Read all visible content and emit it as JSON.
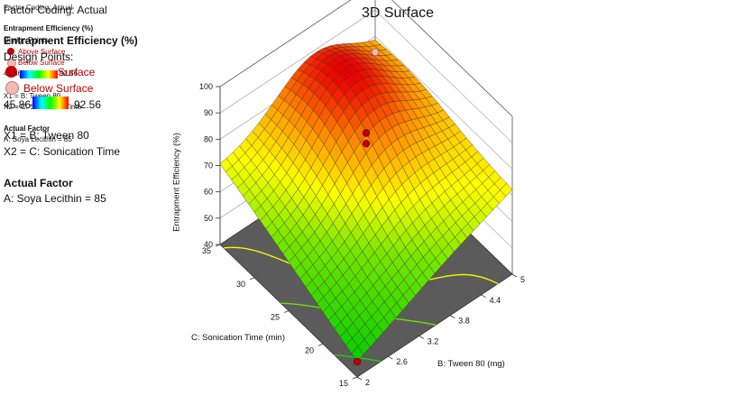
{
  "legend": {
    "factor_coding_ghost": "Factor Coding: Actual",
    "factor_coding": "Factor Coding: Actual",
    "response_ghost": "Entrapment Efficiency (%)",
    "response": "Entrapment Efficiency (%)",
    "design_points_ghost": "Design Points",
    "design_points": "Design Points:",
    "above_surface": "Above Surface",
    "below_surface": "Below Surface",
    "range_min": "45.86",
    "range_max": "92.56",
    "x1": "X1 = B: Tween 80",
    "x2": "X2 = C: Sonication Time",
    "actual_factor": "Actual Factor",
    "actual_factor_value": "A: Soya Lecithin = 85",
    "colors": {
      "above": "#c00000",
      "below": "#f4b8b8"
    }
  },
  "chart_data": {
    "type": "surface3d",
    "title": "3D Surface",
    "zlabel": "Entrapment Efficiency (%)",
    "xlabel": "B: Tween 80 (mg)",
    "ylabel": "C: Sonication Time (min)",
    "x_ticks": [
      "2",
      "2.6",
      "3.2",
      "3.8",
      "4.4",
      "5"
    ],
    "y_ticks": [
      "15",
      "20",
      "25",
      "30",
      "35"
    ],
    "z_ticks": [
      "40",
      "50",
      "60",
      "70",
      "80",
      "90",
      "100"
    ],
    "xlim": [
      2,
      5
    ],
    "ylim": [
      15,
      35
    ],
    "zlim": [
      40,
      100
    ],
    "corners": {
      "x2_y15": 45.86,
      "x2_y35": 70,
      "x5_y15": 72,
      "x5_y35": 75
    },
    "max": {
      "x": 3.8,
      "y": 30,
      "z": 92.56
    },
    "contours": [
      50,
      60,
      70,
      80,
      90
    ],
    "design_points": [
      {
        "x": 3.5,
        "y": 25,
        "z": 88,
        "type": "above"
      },
      {
        "x": 3.5,
        "y": 25,
        "z": 84,
        "type": "above"
      },
      {
        "x": 2,
        "y": 15,
        "z": 45.86,
        "type": "above"
      },
      {
        "x": 5,
        "y": 35,
        "z": 74,
        "type": "below"
      }
    ]
  }
}
